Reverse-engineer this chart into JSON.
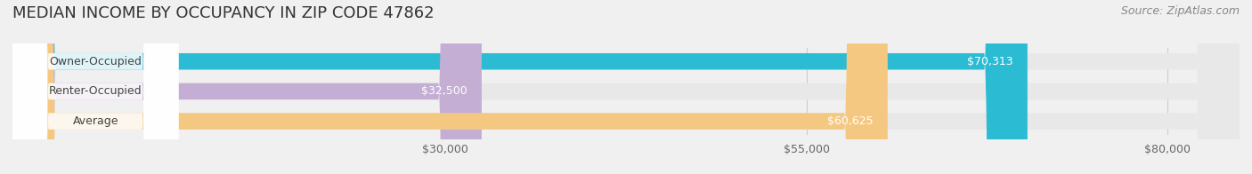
{
  "title": "MEDIAN INCOME BY OCCUPANCY IN ZIP CODE 47862",
  "source": "Source: ZipAtlas.com",
  "categories": [
    "Owner-Occupied",
    "Renter-Occupied",
    "Average"
  ],
  "values": [
    70313,
    32500,
    60625
  ],
  "bar_colors": [
    "#2bbcd4",
    "#c4aed4",
    "#f5c882"
  ],
  "label_colors": [
    "#2bbcd4",
    "#c4aed4",
    "#f5c882"
  ],
  "value_labels": [
    "$70,313",
    "$32,500",
    "$60,625"
  ],
  "xmin": 0,
  "xmax": 85000,
  "xticks": [
    30000,
    55000,
    80000
  ],
  "xtick_labels": [
    "$30,000",
    "$55,000",
    "$80,000"
  ],
  "bar_height": 0.55,
  "background_color": "#f0f0f0",
  "bar_bg_color": "#e8e8e8",
  "title_fontsize": 13,
  "source_fontsize": 9,
  "tick_fontsize": 9,
  "label_fontsize": 9,
  "value_fontsize": 9
}
